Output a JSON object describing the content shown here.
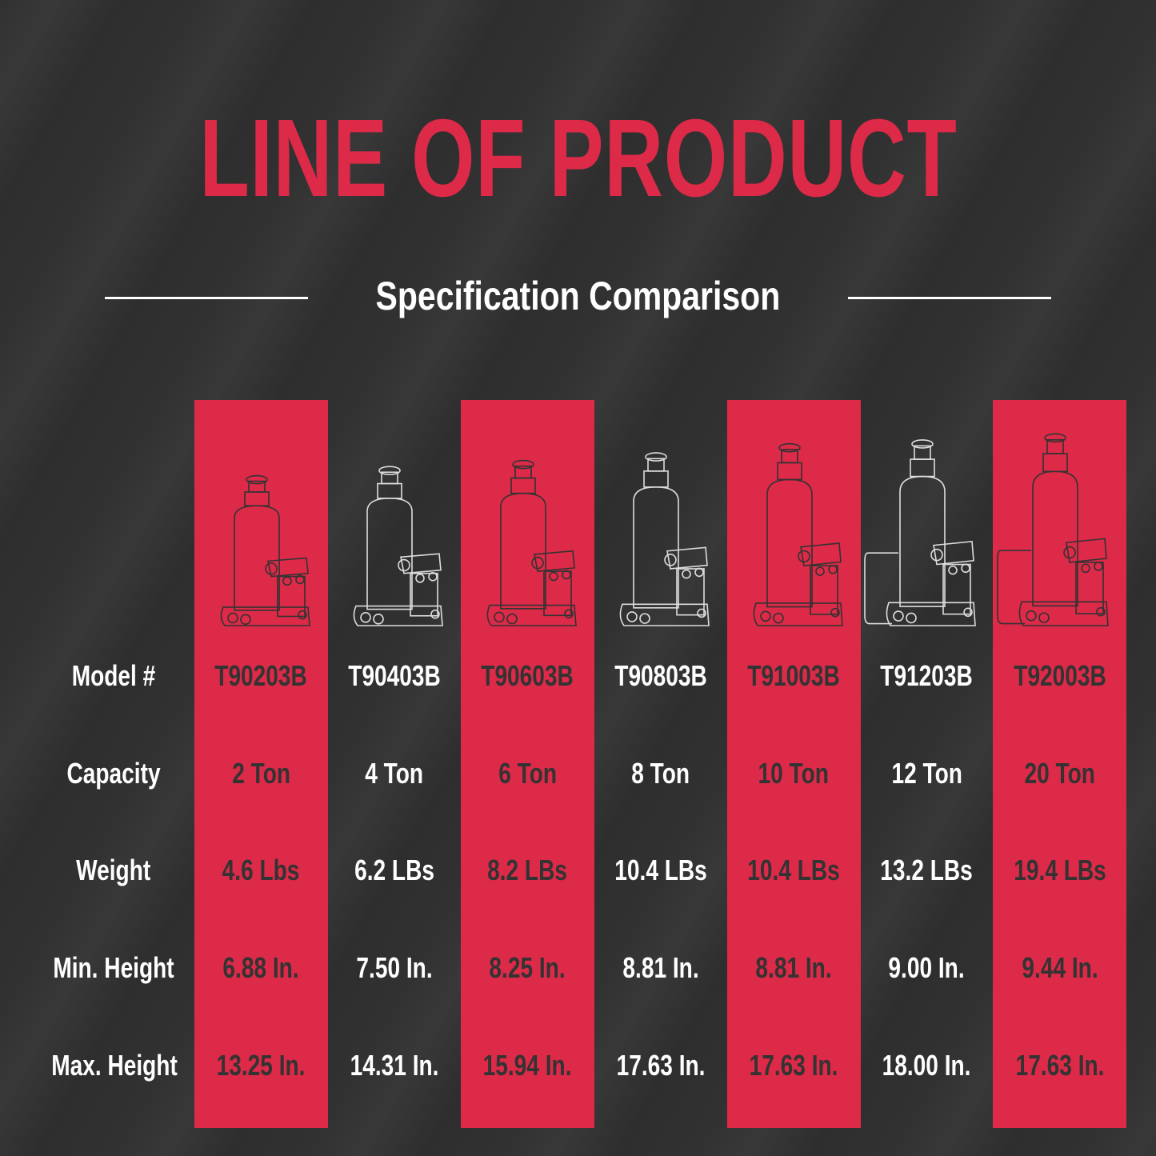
{
  "title": "LINE OF PRODUCT",
  "subtitle": "Specification Comparison",
  "colors": {
    "accent": "#dc2a48",
    "background": "#313131",
    "dark_text": "#333333",
    "light_text": "#ffffff"
  },
  "row_labels": [
    "Model #",
    "Capacity",
    "Weight",
    "Min. Height",
    "Max. Height"
  ],
  "products": [
    {
      "model": "T90203B",
      "capacity": "2 Ton",
      "weight": "4.6 Lbs",
      "min_height": "6.88 In.",
      "max_height": "13.25 In.",
      "style": "red",
      "handle": false
    },
    {
      "model": "T90403B",
      "capacity": "4 Ton",
      "weight": "6.2 LBs",
      "min_height": "7.50 In.",
      "max_height": "14.31 In.",
      "style": "dark",
      "handle": false
    },
    {
      "model": "T90603B",
      "capacity": "6 Ton",
      "weight": "8.2 LBs",
      "min_height": "8.25 In.",
      "max_height": "15.94 In.",
      "style": "red",
      "handle": false
    },
    {
      "model": "T90803B",
      "capacity": "8 Ton",
      "weight": "10.4 LBs",
      "min_height": "8.81 In.",
      "max_height": "17.63 In.",
      "style": "dark",
      "handle": false
    },
    {
      "model": "T91003B",
      "capacity": "10 Ton",
      "weight": "10.4 LBs",
      "min_height": "8.81 In.",
      "max_height": "17.63 In.",
      "style": "red",
      "handle": false
    },
    {
      "model": "T91203B",
      "capacity": "12 Ton",
      "weight": "13.2 LBs",
      "min_height": "9.00 In.",
      "max_height": "18.00 In.",
      "style": "dark",
      "handle": true
    },
    {
      "model": "T92003B",
      "capacity": "20 Ton",
      "weight": "19.4 LBs",
      "min_height": "9.44 In.",
      "max_height": "17.63 In.",
      "style": "red",
      "handle": true
    }
  ]
}
